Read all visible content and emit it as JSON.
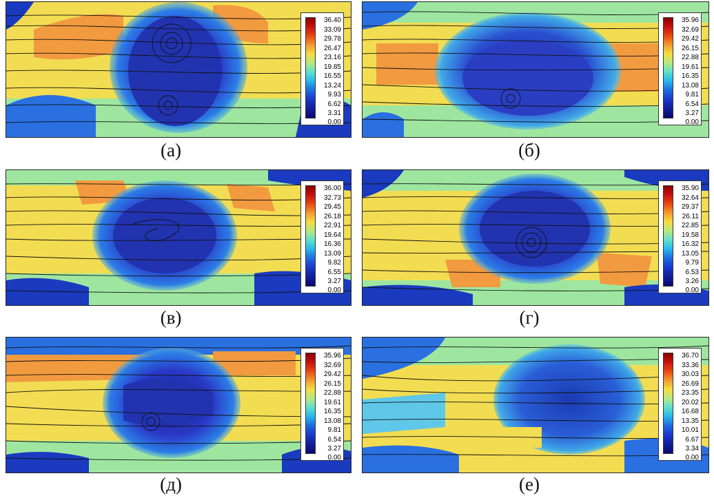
{
  "panels": [
    {
      "caption": "(а)",
      "ticks": [
        "36.40",
        "33.09",
        "29.78",
        "26.47",
        "23.16",
        "19.85",
        "16.55",
        "13.24",
        "9.93",
        "6.62",
        "3.31",
        "0.00"
      ]
    },
    {
      "caption": "(б)",
      "ticks": [
        "35.96",
        "32.69",
        "29.42",
        "26.15",
        "22.88",
        "19.61",
        "16.35",
        "13.08",
        "9.81",
        "6.54",
        "3.27",
        "0.00"
      ]
    },
    {
      "caption": "(в)",
      "ticks": [
        "36.00",
        "32.73",
        "29.45",
        "26.18",
        "22.91",
        "19.64",
        "16.36",
        "13.09",
        "9.82",
        "6.55",
        "3.27",
        "0.00"
      ]
    },
    {
      "caption": "(г)",
      "ticks": [
        "35.90",
        "32.64",
        "29.37",
        "26.11",
        "22.85",
        "19.58",
        "16.32",
        "13.05",
        "9.79",
        "6.53",
        "3.26",
        "0.00"
      ]
    },
    {
      "caption": "(д)",
      "ticks": [
        "35.96",
        "32.69",
        "29.42",
        "26.15",
        "22.88",
        "19.61",
        "16.35",
        "13.08",
        "9.81",
        "6.54",
        "3.27",
        "0.00"
      ]
    },
    {
      "caption": "(е)",
      "ticks": [
        "36.70",
        "33.36",
        "30.03",
        "26.69",
        "23.35",
        "20.02",
        "16.68",
        "13.35",
        "10.01",
        "6.67",
        "3.34",
        "0.00"
      ]
    }
  ],
  "colormap": [
    "#0a0a70",
    "#12209e",
    "#1a3ad0",
    "#1d6fe0",
    "#28b8ee",
    "#5fe0c8",
    "#b8e880",
    "#f5dc40",
    "#f29a30",
    "#e84a10",
    "#c81010",
    "#8b0000"
  ]
}
